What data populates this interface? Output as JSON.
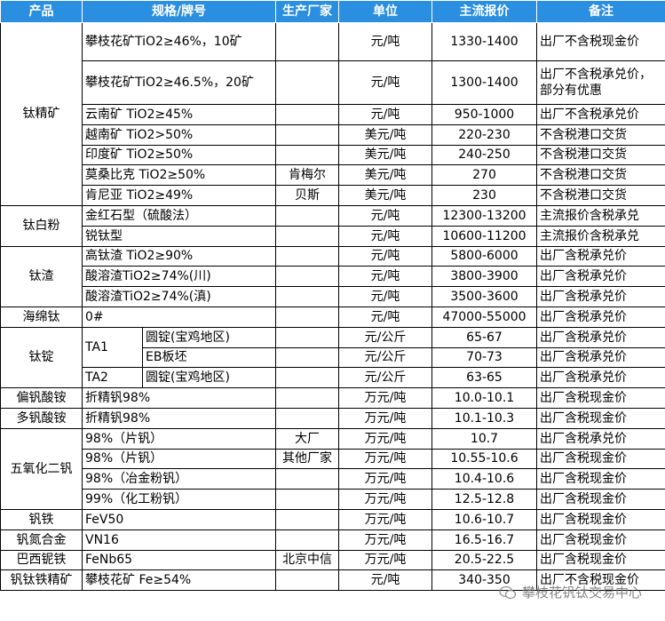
{
  "table": {
    "header": [
      "产品",
      "规格/牌号",
      "生产厂家",
      "单位",
      "主流报价",
      "备注"
    ],
    "groups": [
      {
        "product": "钛精矿",
        "items": [
          {
            "spec": "攀枝花矿TiO2≥46%，10矿",
            "unit": "元/吨",
            "price": "1330-1400",
            "note": "出厂不含税现金价"
          },
          {
            "spec": "攀枝花矿TiO2≥46.5%，20矿",
            "unit": "元/吨",
            "price": "1300-1400",
            "note": "出厂不含税承兑价，部分有优惠"
          },
          {
            "spec": "云南矿 TiO2≥45%",
            "unit": "元/吨",
            "price": "950-1000",
            "note": "出厂不含税承兑价"
          },
          {
            "spec": "越南矿 TiO2>50%",
            "unit": "美元/吨",
            "price": "220-230",
            "note": "不含税港口交货"
          },
          {
            "spec": "印度矿 TiO2≥50%",
            "unit": "美元/吨",
            "price": "240-250",
            "note": "不含税港口交货"
          },
          {
            "spec": "莫桑比克 TiO2≥50%",
            "maker": "肯梅尔",
            "unit": "美元/吨",
            "price": "270",
            "note": "不含税港口交货"
          },
          {
            "spec": "肯尼亚 TiO2≥49%",
            "maker": "贝斯",
            "unit": "美元/吨",
            "price": "230",
            "note": "不含税港口交货"
          }
        ]
      },
      {
        "product": "钛白粉",
        "items": [
          {
            "spec": "金红石型（硫酸法）",
            "unit": "元/吨",
            "price": "12300-13200",
            "note": "主流报价含税承兑"
          },
          {
            "spec": "锐钛型",
            "unit": "元/吨",
            "price": "10600-11200",
            "note": "主流报价含税承兑"
          }
        ]
      },
      {
        "product": "钛渣",
        "items": [
          {
            "spec": "高钛渣 TiO2≥90%",
            "unit": "元/吨",
            "price": "5800-6000",
            "note": "出厂含税承兑价"
          },
          {
            "spec": "酸溶渣TiO2≥74%(川)",
            "unit": "元/吨",
            "price": "3800-3900",
            "note": "出厂含税承兑价"
          },
          {
            "spec": "酸溶渣TiO2≥74%(滇)",
            "unit": "元/吨",
            "price": "3500-3600",
            "note": "出厂含税承兑价"
          }
        ]
      },
      {
        "product": "海绵钛",
        "items": [
          {
            "spec": "0#",
            "unit": "元/吨",
            "price": "47000-55000",
            "note": "出厂含税承兑价"
          }
        ]
      },
      {
        "product": "钛锭",
        "grades": [
          {
            "grade": "TA1",
            "items": [
              {
                "form": "圆锭(宝鸡地区)",
                "unit": "元/公斤",
                "price": "65-67",
                "note": "出厂含税承兑价"
              },
              {
                "form": "EB板坯",
                "unit": "元/公斤",
                "price": "70-73",
                "note": "出厂含税承兑价"
              }
            ]
          },
          {
            "grade": "TA2",
            "items": [
              {
                "form": "圆锭(宝鸡地区)",
                "unit": "元/公斤",
                "price": "63-65",
                "note": "出厂含税承兑价"
              }
            ]
          }
        ]
      },
      {
        "product": "偏钒酸铵",
        "items": [
          {
            "spec": "折精钒98%",
            "unit": "万元/吨",
            "price": "10.0-10.1",
            "note": "出厂含税现金价"
          }
        ]
      },
      {
        "product": "多钒酸铵",
        "items": [
          {
            "spec": "折精钒98%",
            "unit": "万元/吨",
            "price": "10.1-10.3",
            "note": "出厂含税现金价"
          }
        ]
      },
      {
        "product": "五氧化二钒",
        "items": [
          {
            "spec": "98%（片钒）",
            "maker": "大厂",
            "unit": "万元/吨",
            "price": "10.7",
            "note": "出厂含税承兑价"
          },
          {
            "spec": "98%（片钒）",
            "maker": "其他厂家",
            "unit": "万元/吨",
            "price": "10.55-10.6",
            "note": "出厂含税现金价"
          },
          {
            "spec": "98%（冶金粉钒）",
            "unit": "万元/吨",
            "price": "10.4-10.6",
            "note": "出厂含税现金价"
          },
          {
            "spec": "99%（化工粉钒）",
            "unit": "万元/吨",
            "price": "12.5-12.8",
            "note": "出厂含税现金价"
          }
        ]
      },
      {
        "product": "钒铁",
        "items": [
          {
            "spec": "FeV50",
            "unit": "万元/吨",
            "price": "10.6-10.7",
            "note": "出厂含税现金价"
          }
        ]
      },
      {
        "product": "钒氮合金",
        "items": [
          {
            "spec": "VN16",
            "unit": "万元/吨",
            "price": "16.5-16.7",
            "note": "出厂含税现金价"
          }
        ]
      },
      {
        "product": "巴西铌铁",
        "items": [
          {
            "spec": "FeNb65",
            "maker": "北京中信",
            "unit": "万元/吨",
            "price": "20.5-22.5",
            "note": "出厂含税现金价"
          }
        ]
      },
      {
        "product": "钒钛铁精矿",
        "items": [
          {
            "spec": "攀枝花矿 Fe≥54%",
            "unit": "元/吨",
            "price": "340-350",
            "note": "出厂不含税现金价"
          }
        ]
      }
    ]
  },
  "watermark": {
    "text": "攀枝花钒钛交易中心"
  }
}
